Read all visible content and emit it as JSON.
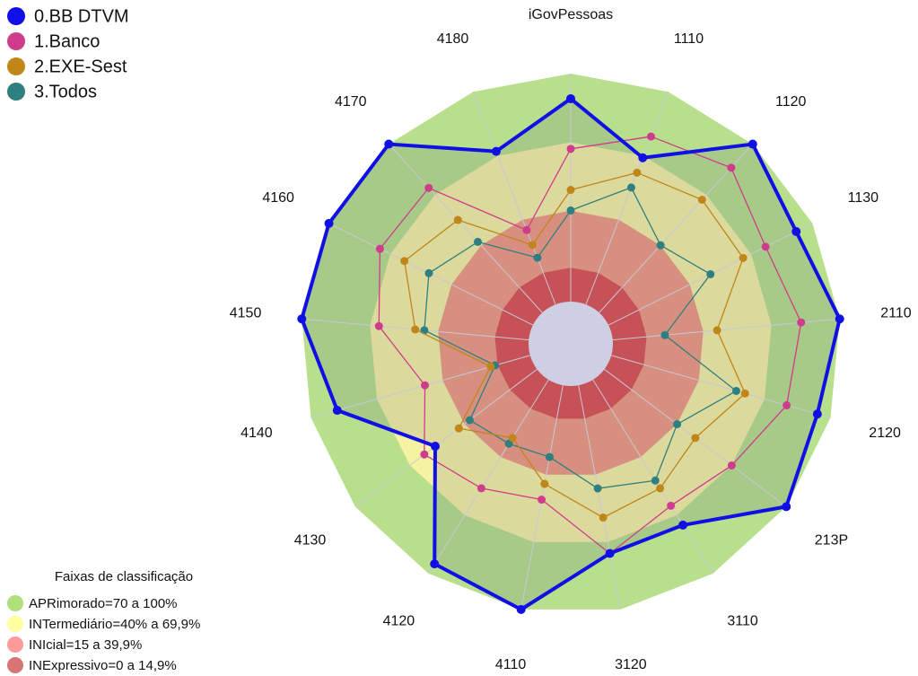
{
  "chart_data": {
    "type": "radar",
    "title": "iGovPessoas",
    "categories": [
      "iGovPessoas",
      "1110",
      "1120",
      "1130",
      "2110",
      "2120",
      "213P",
      "3110",
      "3120",
      "4110",
      "4120",
      "4130",
      "4140",
      "4150",
      "4160",
      "4170",
      "4180"
    ],
    "rlim": [
      0,
      100
    ],
    "series": [
      {
        "name": "0.BB DTVM",
        "color": "#1010e6",
        "values": [
          89,
          69,
          100,
          92,
          100,
          94,
          100,
          75,
          75,
          100,
          95,
          56,
          88,
          100,
          100,
          100,
          72
        ]
      },
      {
        "name": "1.Banco",
        "color": "#d03c8c",
        "values": [
          67,
          79,
          86,
          77,
          83,
          80,
          70,
          65,
          75,
          51,
          56,
          62,
          48,
          66,
          75,
          74,
          35
        ]
      },
      {
        "name": "2.EXE-Sest",
        "color": "#c08618",
        "values": [
          49,
          62,
          67,
          66,
          46,
          61,
          50,
          56,
          59,
          44,
          30,
          43,
          18,
          50,
          63,
          55,
          28
        ]
      },
      {
        "name": "3.Todos",
        "color": "#2e8080",
        "values": [
          40,
          55,
          40,
          50,
          23,
          57,
          40,
          52,
          46,
          32,
          33,
          37,
          16,
          46,
          51,
          42,
          22
        ]
      }
    ],
    "legend_title": "Faixas de classificação",
    "bands": [
      {
        "label": "APRimorado=70 a 100%",
        "color": "#b8e08c",
        "legend_color": "#b0e07c",
        "from": 70,
        "to": 100
      },
      {
        "label": "INTermediário=40% a 69,9%",
        "color": "#f6f2a4",
        "legend_color": "#ffffa0",
        "from": 40,
        "to": 69.9
      },
      {
        "label": "INIcial=15 a 39,9%",
        "color": "#f09a82",
        "legend_color": "#ff9a9a",
        "from": 15,
        "to": 39.9
      },
      {
        "label": "INExpressivo=0 a 14,9%",
        "color": "#dc5050",
        "legend_color": "#d87474",
        "from": 0,
        "to": 14.9
      }
    ]
  }
}
